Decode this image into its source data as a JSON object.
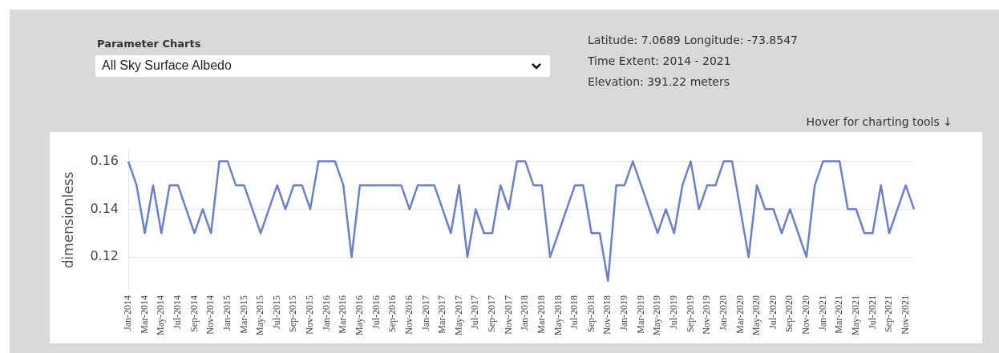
{
  "chart_data": {
    "type": "line",
    "ylabel": "dimensionless",
    "annotations": [
      "Parameter Charts",
      "All Sky Surface Albedo",
      "Latitude: 7.0689  Longitude: -73.8547",
      "Time Extent:  2014  -  2021",
      "Elevation: 391.22 meters",
      "Hover for charting tools ↓"
    ],
    "categories": [
      "Jan-2014",
      null,
      "Mar-2014",
      null,
      "May-2014",
      null,
      "Jul-2014",
      null,
      "Sep-2014",
      null,
      "Nov-2014",
      null,
      "Jan-2015",
      null,
      "Mar-2015",
      null,
      "May-2015",
      null,
      "Jul-2015",
      null,
      "Sep-2015",
      null,
      "Nov-2015",
      null,
      "Jan-2016",
      null,
      "Mar-2016",
      null,
      "May-2016",
      null,
      "Jul-2016",
      null,
      "Sep-2016",
      null,
      "Nov-2016",
      null,
      "Jan-2017",
      null,
      "Mar-2017",
      null,
      "May-2017",
      null,
      "Jul-2017",
      null,
      "Sep-2017",
      null,
      "Nov-2017",
      null,
      "Jan-2018",
      null,
      "Mar-2018",
      null,
      "May-2018",
      null,
      "Jul-2018",
      null,
      "Sep-2018",
      null,
      "Nov-2018",
      null,
      "Jan-2019",
      null,
      "Mar-2019",
      null,
      "May-2019",
      null,
      "Jul-2019",
      null,
      "Sep-2019",
      null,
      "Nov-2019",
      null,
      "Jan-2020",
      null,
      "Mar-2020",
      null,
      "May-2020",
      null,
      "Jul-2020",
      null,
      "Sep-2020",
      null,
      "Nov-2020",
      null,
      "Jan-2021",
      null,
      "Mar-2021",
      null,
      "May-2021",
      null,
      "Jul-2021",
      null,
      "Sep-2021",
      null,
      "Nov-2021",
      null
    ],
    "series": [
      {
        "color": "#6b7fcc",
        "values": [
          0.16,
          0.15,
          0.13,
          0.15,
          0.13,
          0.15,
          0.15,
          0.14,
          0.13,
          0.14,
          0.13,
          0.16,
          0.16,
          0.15,
          0.15,
          0.14,
          0.13,
          0.14,
          0.15,
          0.14,
          0.15,
          0.15,
          0.14,
          0.16,
          0.16,
          0.16,
          0.15,
          0.12,
          0.15,
          0.15,
          0.15,
          0.15,
          0.15,
          0.15,
          0.14,
          0.15,
          0.15,
          0.15,
          0.14,
          0.13,
          0.15,
          0.12,
          0.14,
          0.13,
          0.13,
          0.15,
          0.14,
          0.16,
          0.16,
          0.15,
          0.15,
          0.12,
          0.13,
          0.14,
          0.15,
          0.15,
          0.13,
          0.13,
          0.11,
          0.15,
          0.15,
          0.16,
          0.15,
          0.14,
          0.13,
          0.14,
          0.13,
          0.15,
          0.16,
          0.14,
          0.15,
          0.15,
          0.16,
          0.16,
          0.14,
          0.12,
          0.15,
          0.14,
          0.14,
          0.13,
          0.14,
          0.13,
          0.12,
          0.15,
          0.16,
          0.16,
          0.16,
          0.14,
          0.14,
          0.13,
          0.13,
          0.15,
          0.13,
          0.14,
          0.15,
          0.14
        ]
      }
    ],
    "ylim": [
      0.106,
      0.165
    ],
    "yticks": [
      0.12,
      0.14,
      0.16
    ],
    "grid": "y",
    "legend": false,
    "marker": "none",
    "line_style": "solid"
  }
}
